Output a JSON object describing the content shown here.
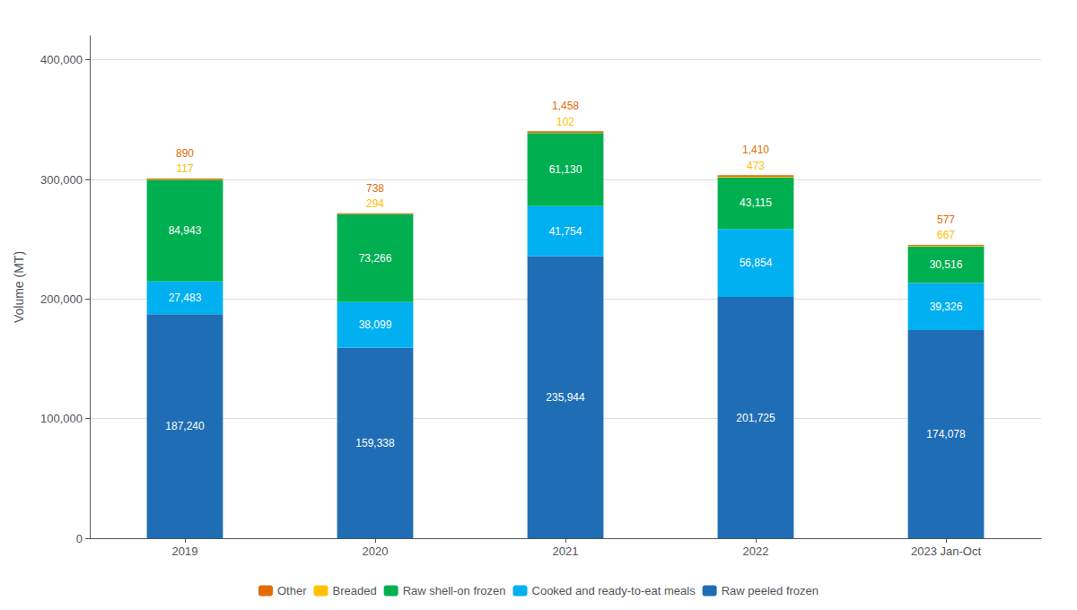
{
  "chart_data": {
    "type": "bar",
    "stacked": true,
    "data_labels": true,
    "grid": true,
    "legend": "bottom",
    "categories": [
      "2019",
      "2020",
      "2021",
      "2022",
      "2023 Jan-Oct"
    ],
    "ylabel": "Volume (MT)",
    "ylim": [
      0,
      420000
    ],
    "yticks": [
      0,
      {
        "value": 100000,
        "label": "100,000"
      },
      {
        "value": 200000,
        "label": "200,000"
      },
      {
        "value": 300000,
        "label": "300,000"
      },
      {
        "value": 400000,
        "label": "400,000"
      }
    ],
    "series": [
      {
        "name": "Raw peeled frozen",
        "color": "#1f6eb5",
        "values": [
          187240,
          159338,
          235944,
          201725,
          174078
        ],
        "value_labels": [
          "187,240",
          "159,338",
          "235,944",
          "201,725",
          "174,078"
        ]
      },
      {
        "name": "Cooked and ready-to-eat meals",
        "color": "#00b0f0",
        "values": [
          27483,
          38099,
          41754,
          56854,
          39326
        ],
        "value_labels": [
          "27,483",
          "38,099",
          "41,754",
          "56,854",
          "39,326"
        ]
      },
      {
        "name": "Raw shell-on frozen",
        "color": "#00b050",
        "values": [
          84943,
          73266,
          61130,
          43115,
          30516
        ],
        "value_labels": [
          "84,943",
          "73,266",
          "61,130",
          "43,115",
          "30,516"
        ]
      },
      {
        "name": "Breaded",
        "color": "#ffc000",
        "values": [
          117,
          294,
          102,
          473,
          667
        ],
        "value_labels": [
          "117",
          "294",
          "102",
          "473",
          "667"
        ]
      },
      {
        "name": "Other",
        "color": "#e36c09",
        "values": [
          890,
          738,
          1458,
          1410,
          577
        ],
        "value_labels": [
          "890",
          "738",
          "1,458",
          "1,410",
          "577"
        ]
      }
    ]
  }
}
